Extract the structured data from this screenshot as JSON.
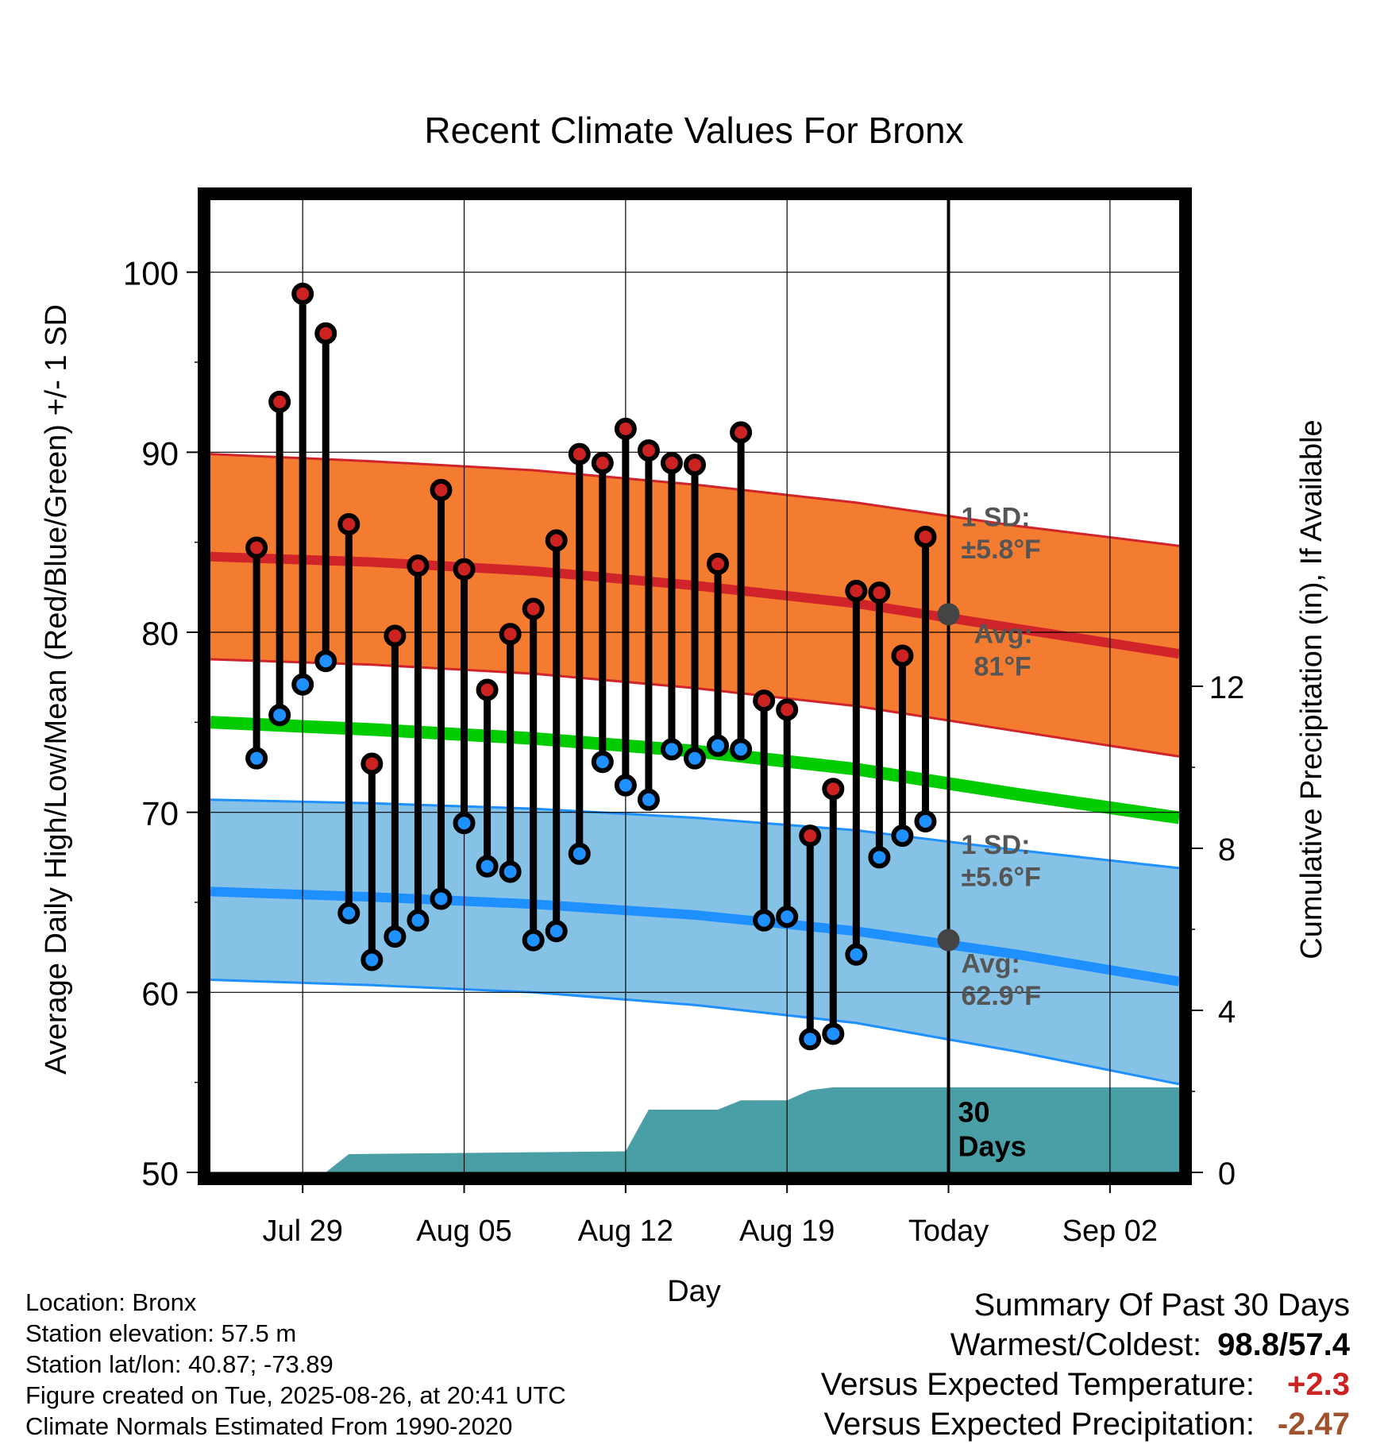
{
  "chart_data": {
    "type": "line",
    "title": "Recent Climate Values For Bronx",
    "xlabel": "Day",
    "ylabel": "Average Daily High/Low/Mean (Red/Blue/Green) +/- 1 SD",
    "y2label": "Cumulative Precipitation (in), If Available",
    "ylim": [
      50,
      104
    ],
    "y2lim": [
      0,
      24
    ],
    "yticks": [
      "50",
      "60",
      "70",
      "80",
      "90",
      "100"
    ],
    "y2ticks": [
      "0",
      "4",
      "8",
      "12"
    ],
    "x_range": [
      "2025-07-25",
      "2025-09-05"
    ],
    "xticks": [
      {
        "date": "2025-07-29",
        "label": "Jul 29"
      },
      {
        "date": "2025-08-05",
        "label": "Aug 05"
      },
      {
        "date": "2025-08-12",
        "label": "Aug 12"
      },
      {
        "date": "2025-08-19",
        "label": "Aug 19"
      },
      {
        "date": "2025-08-26",
        "label": "Today"
      },
      {
        "date": "2025-09-02",
        "label": "Sep 02"
      }
    ],
    "grid": true,
    "today": "2025-08-26",
    "today_label": "30 Days",
    "normals": {
      "dates": [
        "2025-07-25",
        "2025-08-01",
        "2025-08-08",
        "2025-08-15",
        "2025-08-22",
        "2025-08-29",
        "2025-09-05"
      ],
      "high": [
        84.2,
        83.9,
        83.4,
        82.6,
        81.6,
        80.2,
        78.8
      ],
      "high_upper": [
        89.9,
        89.5,
        89.0,
        88.2,
        87.2,
        85.9,
        84.8
      ],
      "high_lower": [
        78.5,
        78.2,
        77.7,
        76.9,
        75.9,
        74.5,
        73.1
      ],
      "mean": [
        75.0,
        74.6,
        74.1,
        73.4,
        72.4,
        71.0,
        69.7
      ],
      "low": [
        65.6,
        65.3,
        64.9,
        64.3,
        63.4,
        62.1,
        60.6
      ],
      "low_upper": [
        70.7,
        70.5,
        70.2,
        69.7,
        69.0,
        67.9,
        66.9
      ],
      "low_lower": [
        60.7,
        60.4,
        60.0,
        59.3,
        58.3,
        56.7,
        54.9
      ]
    },
    "series": [
      {
        "name": "High",
        "dates": [
          "2025-07-27",
          "2025-07-28",
          "2025-07-29",
          "2025-07-30",
          "2025-07-31",
          "2025-08-01",
          "2025-08-02",
          "2025-08-03",
          "2025-08-04",
          "2025-08-05",
          "2025-08-06",
          "2025-08-07",
          "2025-08-08",
          "2025-08-09",
          "2025-08-10",
          "2025-08-11",
          "2025-08-12",
          "2025-08-13",
          "2025-08-14",
          "2025-08-15",
          "2025-08-16",
          "2025-08-17",
          "2025-08-18",
          "2025-08-19",
          "2025-08-20",
          "2025-08-21",
          "2025-08-22",
          "2025-08-23",
          "2025-08-24",
          "2025-08-25"
        ],
        "values": [
          84.7,
          92.8,
          98.8,
          96.6,
          86.0,
          72.7,
          79.8,
          83.7,
          87.9,
          83.5,
          76.8,
          79.9,
          81.3,
          85.1,
          89.9,
          89.4,
          91.3,
          90.1,
          89.4,
          89.3,
          83.8,
          91.1,
          76.2,
          75.7,
          68.7,
          71.3,
          82.3,
          82.2,
          78.7,
          85.3
        ]
      },
      {
        "name": "Low",
        "dates": [
          "2025-07-27",
          "2025-07-28",
          "2025-07-29",
          "2025-07-30",
          "2025-07-31",
          "2025-08-01",
          "2025-08-02",
          "2025-08-03",
          "2025-08-04",
          "2025-08-05",
          "2025-08-06",
          "2025-08-07",
          "2025-08-08",
          "2025-08-09",
          "2025-08-10",
          "2025-08-11",
          "2025-08-12",
          "2025-08-13",
          "2025-08-14",
          "2025-08-15",
          "2025-08-16",
          "2025-08-17",
          "2025-08-18",
          "2025-08-19",
          "2025-08-20",
          "2025-08-21",
          "2025-08-22",
          "2025-08-23",
          "2025-08-24",
          "2025-08-25"
        ],
        "values": [
          73.0,
          75.4,
          77.1,
          78.4,
          64.4,
          61.8,
          63.1,
          64.0,
          65.2,
          69.4,
          67.0,
          66.7,
          62.9,
          63.4,
          67.7,
          72.8,
          71.5,
          70.7,
          73.5,
          73.0,
          73.7,
          73.5,
          64.0,
          64.2,
          57.4,
          57.7,
          62.1,
          67.5,
          68.7,
          69.5
        ]
      }
    ],
    "precipitation": {
      "dates": [
        "2025-07-25",
        "2025-07-30",
        "2025-07-31",
        "2025-08-12",
        "2025-08-13",
        "2025-08-16",
        "2025-08-17",
        "2025-08-19",
        "2025-08-20",
        "2025-08-21",
        "2025-09-05"
      ],
      "values": [
        0.0,
        0.0,
        0.45,
        0.52,
        1.55,
        1.55,
        1.78,
        1.78,
        2.03,
        2.1,
        2.1
      ]
    },
    "annotations": {
      "high_sd_label": "1 SD:",
      "high_sd_value": "±5.8°F",
      "high_avg_label": "Avg:",
      "high_avg_value": "81°F",
      "high_avg_today": 81.0,
      "low_sd_label": "1 SD:",
      "low_sd_value": "±5.6°F",
      "low_avg_label": "Avg:",
      "low_avg_value": "62.9°F",
      "low_avg_today": 62.9
    },
    "colors": {
      "high_band": "#f47c30",
      "high_line": "#d0242a",
      "high_marker": "#cc2222",
      "mean_line": "#00cc00",
      "low_band": "#86c1e6",
      "low_line": "#1e90ff",
      "low_marker": "#1e90ff",
      "precip": "#4a9ea6",
      "annotation": "#555555"
    }
  },
  "info": {
    "location": "Location: Bronx",
    "elevation": "Station elevation: 57.5 m",
    "latlon": "Station lat/lon: 40.87; -73.89",
    "created": "Figure created on Tue, 2025-08-26, at 20:41 UTC",
    "normals": "Climate Normals Estimated From 1990-2020"
  },
  "summary": {
    "title": "Summary Of Past 30 Days",
    "warm_cold_label": "Warmest/Coldest:",
    "warm_cold_value": "98.8/57.4",
    "temp_label": "Versus Expected Temperature:",
    "temp_value": "+2.3",
    "precip_label": "Versus Expected Precipitation:",
    "precip_value": "-2.47"
  }
}
